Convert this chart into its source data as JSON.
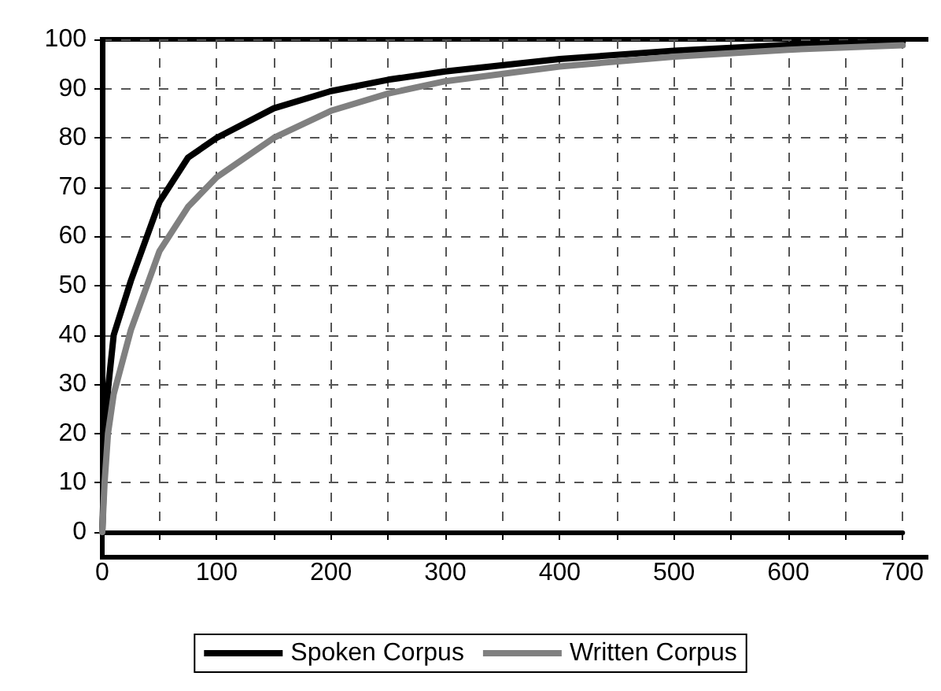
{
  "chart_data": {
    "type": "line",
    "xlim": [
      0,
      700
    ],
    "ylim": [
      0,
      100
    ],
    "xticks": [
      0,
      {
        "value": 50,
        "label": null
      },
      100,
      {
        "value": 150,
        "label": null
      },
      200,
      {
        "value": 250,
        "label": null
      },
      300,
      {
        "value": 350,
        "label": null
      },
      400,
      {
        "value": 450,
        "label": null
      },
      500,
      {
        "value": 550,
        "label": null
      },
      600,
      {
        "value": 650,
        "label": null
      },
      700
    ],
    "yticks": [
      0,
      10,
      20,
      30,
      40,
      50,
      60,
      70,
      80,
      90,
      100
    ],
    "grid": true,
    "legend": "bottom",
    "marker": "none",
    "line_style": "solid",
    "series": [
      {
        "name": "Spoken Corpus",
        "color": "#000000",
        "x": [
          0,
          2,
          5,
          10,
          25,
          50,
          75,
          100,
          150,
          200,
          250,
          300,
          400,
          500,
          600,
          700
        ],
        "values": [
          0,
          15,
          29,
          40,
          51,
          67,
          76,
          80,
          86,
          89.5,
          91.8,
          93.5,
          96,
          97.7,
          98.9,
          99.5
        ]
      },
      {
        "name": "Written Corpus",
        "color": "#808080",
        "x": [
          0,
          2,
          5,
          10,
          25,
          50,
          75,
          100,
          150,
          200,
          250,
          300,
          400,
          500,
          600,
          700
        ],
        "values": [
          0,
          10,
          20,
          28,
          41,
          57,
          66,
          72,
          80,
          85.5,
          89,
          91.5,
          94.5,
          96.5,
          97.9,
          98.8
        ]
      }
    ]
  }
}
